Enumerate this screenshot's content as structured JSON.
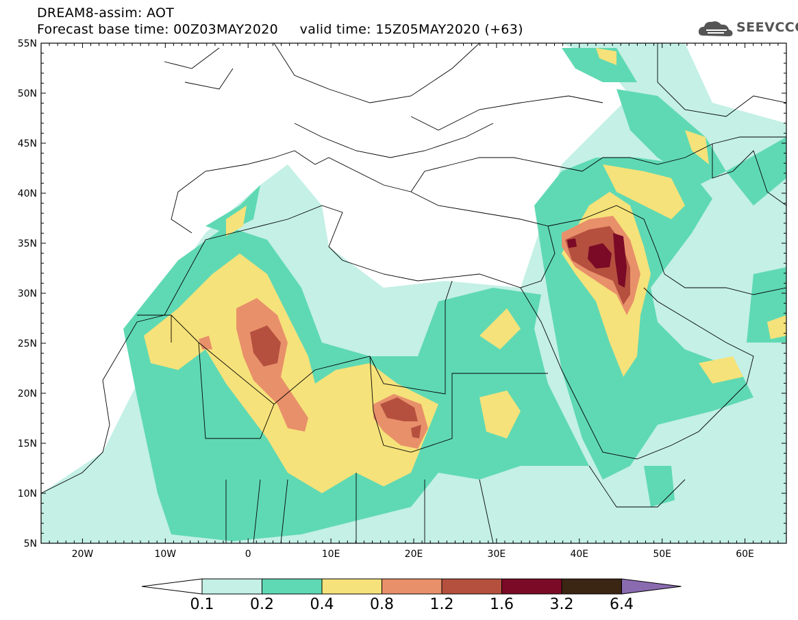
{
  "header": {
    "line1": "DREAM8-assim: AOT",
    "line2": "Forecast base time: 00Z03MAY2020     valid time: 15Z05MAY2020 (+63)"
  },
  "logo": {
    "text": "SEEVCCC",
    "icon": "cloud-icon"
  },
  "map": {
    "lat_labels": [
      "55N",
      "50N",
      "45N",
      "40N",
      "35N",
      "30N",
      "25N",
      "20N",
      "15N",
      "10N",
      "5N"
    ],
    "lon_labels": [
      "20W",
      "10W",
      "0",
      "10E",
      "20E",
      "30E",
      "40E",
      "50E",
      "60E"
    ],
    "lat_range": [
      5,
      55
    ],
    "lon_range": [
      -25,
      65
    ],
    "field": "AOT"
  },
  "colorbar": {
    "labels": [
      "0.1",
      "0.2",
      "0.4",
      "0.8",
      "1.2",
      "1.6",
      "3.2",
      "6.4"
    ],
    "colors": [
      "#ffffff",
      "#c4f0e6",
      "#5fd9b3",
      "#f6e27a",
      "#e8906a",
      "#b5503f",
      "#7a0a25",
      "#3b2513",
      "#8a6bb0"
    ]
  }
}
